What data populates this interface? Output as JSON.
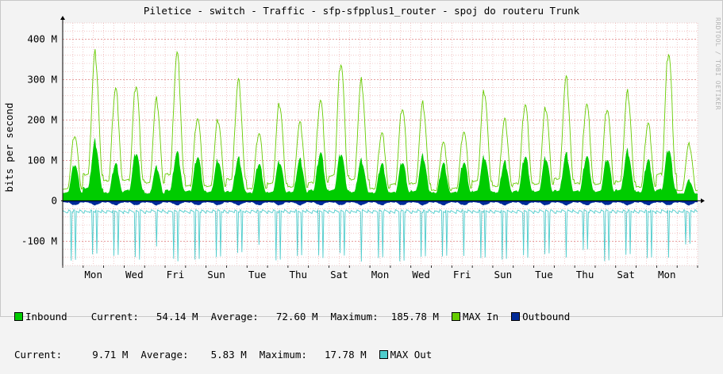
{
  "title": "Piletice - switch - Traffic - sfp-sfpplus1_router - spoj do routeru Trunk",
  "watermark": "RRDTOOL / TOBI OETIKER",
  "colors": {
    "inbound": "#00cc00",
    "max_in": "#66cc00",
    "outbound": "#002a97",
    "max_out": "#4fcccc",
    "grid_minor": "#e8a0a0",
    "axis": "#000000"
  },
  "legend": {
    "inbound_label": "Inbound",
    "inbound_current_label": "Current:",
    "inbound_current": "54.14 M",
    "inbound_average_label": "Average:",
    "inbound_average": "72.60 M",
    "inbound_maximum_label": "Maximum:",
    "inbound_maximum": "185.78 M",
    "max_in_label": "MAX In",
    "outbound_label": "Outbound",
    "outbound_current_label": "Current:",
    "outbound_current": "9.71 M",
    "outbound_average_label": "Average:",
    "outbound_average": "5.83 M",
    "outbound_maximum_label": "Maximum:",
    "outbound_maximum": "17.78 M",
    "max_out_label": "MAX Out"
  },
  "chart_data": {
    "type": "area",
    "title": "Piletice - switch - Traffic - sfp-sfpplus1_router - spoj do routeru Trunk",
    "ylabel": "bits per second",
    "ylim": [
      -160,
      440
    ],
    "y_unit": "M",
    "y_ticks": [
      -100,
      0,
      100,
      200,
      300,
      400
    ],
    "y_tick_labels": [
      "-100 M",
      "0",
      "100 M",
      "200 M",
      "300 M",
      "400 M"
    ],
    "x_tick_labels": [
      "Mon",
      "Wed",
      "Fri",
      "Sun",
      "Tue",
      "Thu",
      "Sat",
      "Mon",
      "Wed",
      "Fri",
      "Sun",
      "Tue",
      "Thu",
      "Sat",
      "Mon"
    ],
    "x_tick_days": [
      1.5,
      3.5,
      5.5,
      7.5,
      9.5,
      11.5,
      13.5,
      15.5,
      17.5,
      19.5,
      21.5,
      23.5,
      25.5,
      27.5,
      29.5
    ],
    "x_range_days": [
      0,
      31
    ],
    "day_peaks": {
      "max_in": [
        170,
        380,
        290,
        300,
        260,
        380,
        215,
        210,
        310,
        175,
        250,
        200,
        260,
        360,
        310,
        175,
        240,
        250,
        150,
        180,
        285,
        210,
        250,
        240,
        315,
        250,
        240,
        280,
        200,
        385,
        145
      ],
      "inbound": [
        100,
        160,
        100,
        130,
        90,
        130,
        120,
        110,
        115,
        100,
        105,
        110,
        130,
        130,
        110,
        100,
        105,
        120,
        100,
        105,
        120,
        105,
        120,
        115,
        125,
        120,
        115,
        135,
        110,
        140,
        55
      ],
      "max_out": [
        -150,
        -135,
        -140,
        -145,
        -110,
        -150,
        -145,
        -140,
        -130,
        -110,
        -150,
        -140,
        -140,
        -135,
        -150,
        -140,
        -150,
        -140,
        -140,
        -140,
        -145,
        -150,
        -140,
        -130,
        -140,
        -120,
        -150,
        -135,
        -145,
        -145,
        -110
      ]
    },
    "series": [
      {
        "name": "Inbound",
        "current": 54.14,
        "average": 72.6,
        "maximum": 185.78
      },
      {
        "name": "MAX In"
      },
      {
        "name": "Outbound",
        "current": 9.71,
        "average": 5.83,
        "maximum": 17.78
      },
      {
        "name": "MAX Out"
      }
    ],
    "grid": true,
    "legend_placement": "bottom"
  }
}
